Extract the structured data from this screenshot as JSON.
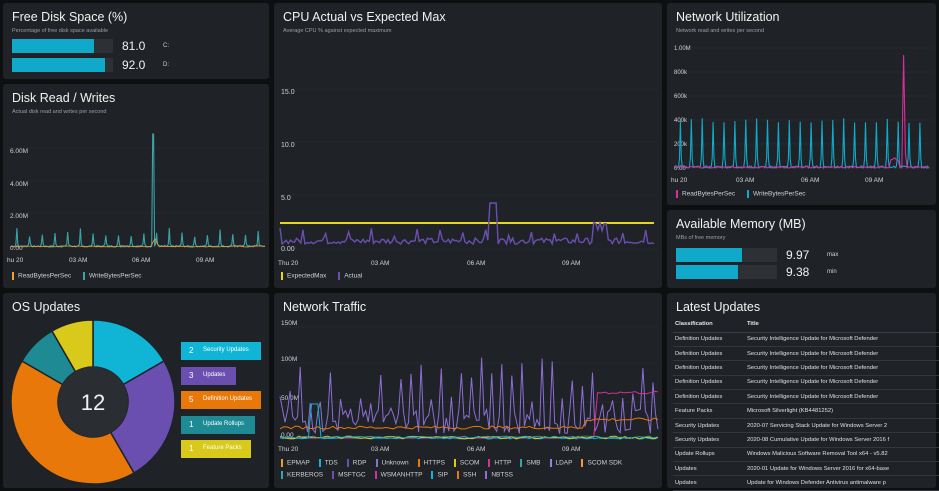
{
  "colors": {
    "tile_bg": "#1f2226",
    "cyan": "#10a9c9",
    "teal": "#3aa3a8",
    "orange": "#f0a030",
    "magenta": "#d3309a",
    "purple": "#6a4fb0",
    "yellow": "#e8d61a"
  },
  "free_disk": {
    "title": "Free Disk Space (%)",
    "subtitle": "Percentage of free disk space available",
    "drives": [
      {
        "value": "81.0",
        "label": "C:",
        "percent": 81.0
      },
      {
        "value": "92.0",
        "label": "D:",
        "percent": 92.0
      }
    ]
  },
  "disk_rw": {
    "title": "Disk Read / Writes",
    "subtitle": "Actual disk read and writes per second",
    "y_ticks": [
      "6.00M",
      "4.00M",
      "2.00M",
      "0.00"
    ],
    "x_ticks": [
      "hu 20",
      "03 AM",
      "06 AM",
      "09 AM"
    ],
    "legend": [
      {
        "name": "ReadBytesPerSec",
        "color": "#f0a030"
      },
      {
        "name": "WriteBytesPerSec",
        "color": "#3aa3a8"
      }
    ]
  },
  "cpu": {
    "title": "CPU Actual vs Expected Max",
    "subtitle": "Average CPU % against expected maximum",
    "y_ticks": [
      "15.0",
      "10.0",
      "5.0",
      "0.00"
    ],
    "x_ticks": [
      "Thu 20",
      "03 AM",
      "06 AM",
      "09 AM"
    ],
    "legend": [
      {
        "name": "ExpectedMax",
        "color": "#e8d61a"
      },
      {
        "name": "Actual",
        "color": "#6a4fb0"
      }
    ]
  },
  "net_util": {
    "title": "Network Utilization",
    "subtitle": "Network read and writes per second",
    "y_ticks": [
      "1.00M",
      "800k",
      "600k",
      "400k",
      "200k",
      "0.00"
    ],
    "x_ticks": [
      "hu 20",
      "03 AM",
      "06 AM",
      "09 AM"
    ],
    "legend": [
      {
        "name": "ReadBytesPerSec",
        "color": "#d3309a"
      },
      {
        "name": "WriteBytesPerSec",
        "color": "#10a9c9"
      }
    ]
  },
  "memory": {
    "title": "Available Memory (MB)",
    "subtitle": "MBs of free memory",
    "rows": [
      {
        "value": "9.97",
        "label": "max",
        "percent": 0.65
      },
      {
        "value": "9.38",
        "label": "min",
        "percent": 0.61
      }
    ]
  },
  "os_updates": {
    "title": "OS Updates",
    "total": "12",
    "categories": [
      {
        "count": "2",
        "name": "Security Updates",
        "color": "#10b5d6",
        "value": 2
      },
      {
        "count": "3",
        "name": "Updates",
        "color": "#6a4fb0",
        "value": 3
      },
      {
        "count": "5",
        "name": "Definition Updates",
        "color": "#e8780a",
        "value": 5
      },
      {
        "count": "1",
        "name": "Update Rollups",
        "color": "#1e8a94",
        "value": 1
      },
      {
        "count": "1",
        "name": "Feature Packs",
        "color": "#d9c91a",
        "value": 1
      }
    ]
  },
  "net_traffic": {
    "title": "Network Traffic",
    "y_ticks": [
      "150M",
      "100M",
      "50.0M",
      "0.00"
    ],
    "x_ticks": [
      "Thu 20",
      "03 AM",
      "06 AM",
      "09 AM"
    ],
    "legend_row1": [
      {
        "name": "EPMAP",
        "color": "#e8a020"
      },
      {
        "name": "TDS",
        "color": "#10b5d6"
      },
      {
        "name": "RDP",
        "color": "#6a4fb0"
      },
      {
        "name": "Unknown",
        "color": "#8c6fd6"
      },
      {
        "name": "HTTPS",
        "color": "#e8780a"
      },
      {
        "name": "SCOM",
        "color": "#d9c91a"
      },
      {
        "name": "HTTP",
        "color": "#d3309a"
      },
      {
        "name": "SMB",
        "color": "#3aa3a8"
      },
      {
        "name": "LDAP",
        "color": "#9b7fe0"
      },
      {
        "name": "SCOM SDK",
        "color": "#f09a30"
      }
    ],
    "legend_row2": [
      {
        "name": "KERBEROS",
        "color": "#3aa3a8"
      },
      {
        "name": "MSFTGC",
        "color": "#6a4fb0"
      },
      {
        "name": "WSMANHTTP",
        "color": "#d3309a"
      },
      {
        "name": "SIP",
        "color": "#10b5d6"
      },
      {
        "name": "SSH",
        "color": "#e8780a"
      },
      {
        "name": "NBTSS",
        "color": "#8c6fd6"
      }
    ]
  },
  "latest_updates": {
    "title": "Latest Updates",
    "columns": [
      "Classification",
      "Title"
    ],
    "rows": [
      [
        "Definition Updates",
        "Security Intelligence Update for Microsoft Defender"
      ],
      [
        "Definition Updates",
        "Security Intelligence Update for Microsoft Defender"
      ],
      [
        "Definition Updates",
        "Security Intelligence Update for Microsoft Defender"
      ],
      [
        "Definition Updates",
        "Security Intelligence Update for Microsoft Defender"
      ],
      [
        "Definition Updates",
        "Security Intelligence Update for Microsoft Defender"
      ],
      [
        "Feature Packs",
        "Microsoft Silverlight (KB4481252)"
      ],
      [
        "Security Updates",
        "2020-07 Servicing Stack Update for Windows Server 2"
      ],
      [
        "Security Updates",
        "2020-08 Cumulative Update for Windows Server 2016 f"
      ],
      [
        "Update Rollups",
        "Windows Malicious Software Removal Tool x64 - v5.82"
      ],
      [
        "Updates",
        "2020-01 Update for Windows Server 2016 for x64-base"
      ],
      [
        "Updates",
        "Update for Windows Defender Antivirus antimalware p"
      ]
    ]
  }
}
